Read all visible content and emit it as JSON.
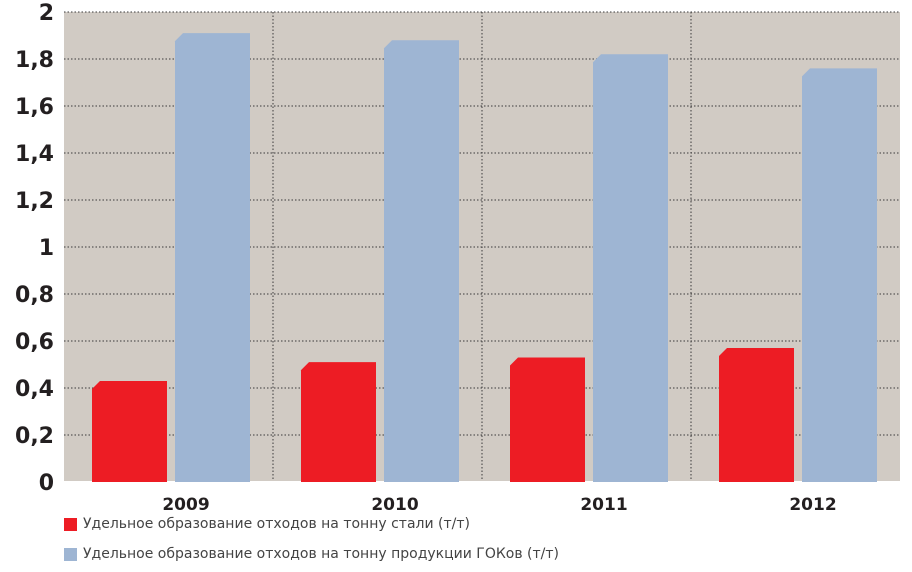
{
  "chart_data": {
    "type": "bar",
    "categories": [
      "2009",
      "2010",
      "2011",
      "2012"
    ],
    "y_ticks": [
      "0",
      "0,2",
      "0,4",
      "0,6",
      "0,8",
      "1",
      "1,2",
      "1,4",
      "1,6",
      "1,8",
      "2"
    ],
    "ylim": [
      0,
      2
    ],
    "grid": true,
    "legend_position": "bottom",
    "series": [
      {
        "name": "Удельное образование отходов на тонну стали (т/т)",
        "color": "#ed1c24",
        "values": [
          0.43,
          0.51,
          0.53,
          0.57
        ]
      },
      {
        "name": "Удельное образование отходов на тонну продукции ГОКов (т/т)",
        "color": "#9eb5d3",
        "values": [
          1.91,
          1.88,
          1.82,
          1.76
        ]
      }
    ],
    "plot_background": "#d1cbc4"
  }
}
